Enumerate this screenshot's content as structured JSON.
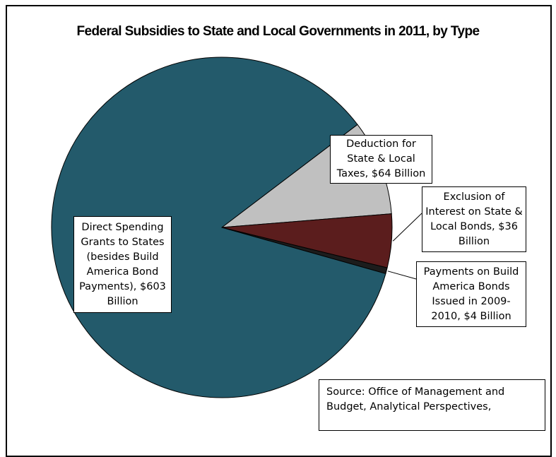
{
  "chart_data": {
    "type": "pie",
    "title": "Federal Subsidies to State and Local Governments in 2011, by Type",
    "unit": "Billion",
    "slices": [
      {
        "name": "Deduction for State & Local Taxes",
        "value": 64,
        "color": "#c0c0c0",
        "label": "Deduction for\nState & Local\nTaxes,  $64 Billion"
      },
      {
        "name": "Exclusion of Interest on State & Local Bonds",
        "value": 36,
        "color": "#5b1d1d",
        "label": "Exclusion of\nInterest on State &\nLocal Bonds,  $36\nBillion"
      },
      {
        "name": "Payments on Build America Bonds Issued in 2009-2010",
        "value": 4,
        "color": "#1c1c1c",
        "label": "Payments on Build\nAmerica Bonds\nIssued in 2009-\n2010,  $4 Billion"
      },
      {
        "name": "Direct Spending Grants to States (besides Build America Bond Payments)",
        "value": 603,
        "color": "#235a6b",
        "label": "Direct Spending\nGrants to States\n(besides Build\nAmerica Bond\nPayments),  $603\nBillion"
      }
    ],
    "start_slice": "Deduction for State & Local Taxes",
    "direction": "clockwise",
    "legend": "none"
  },
  "source_note": "Source: Office of Management  and\nBudget, Analytical  Perspectives,"
}
